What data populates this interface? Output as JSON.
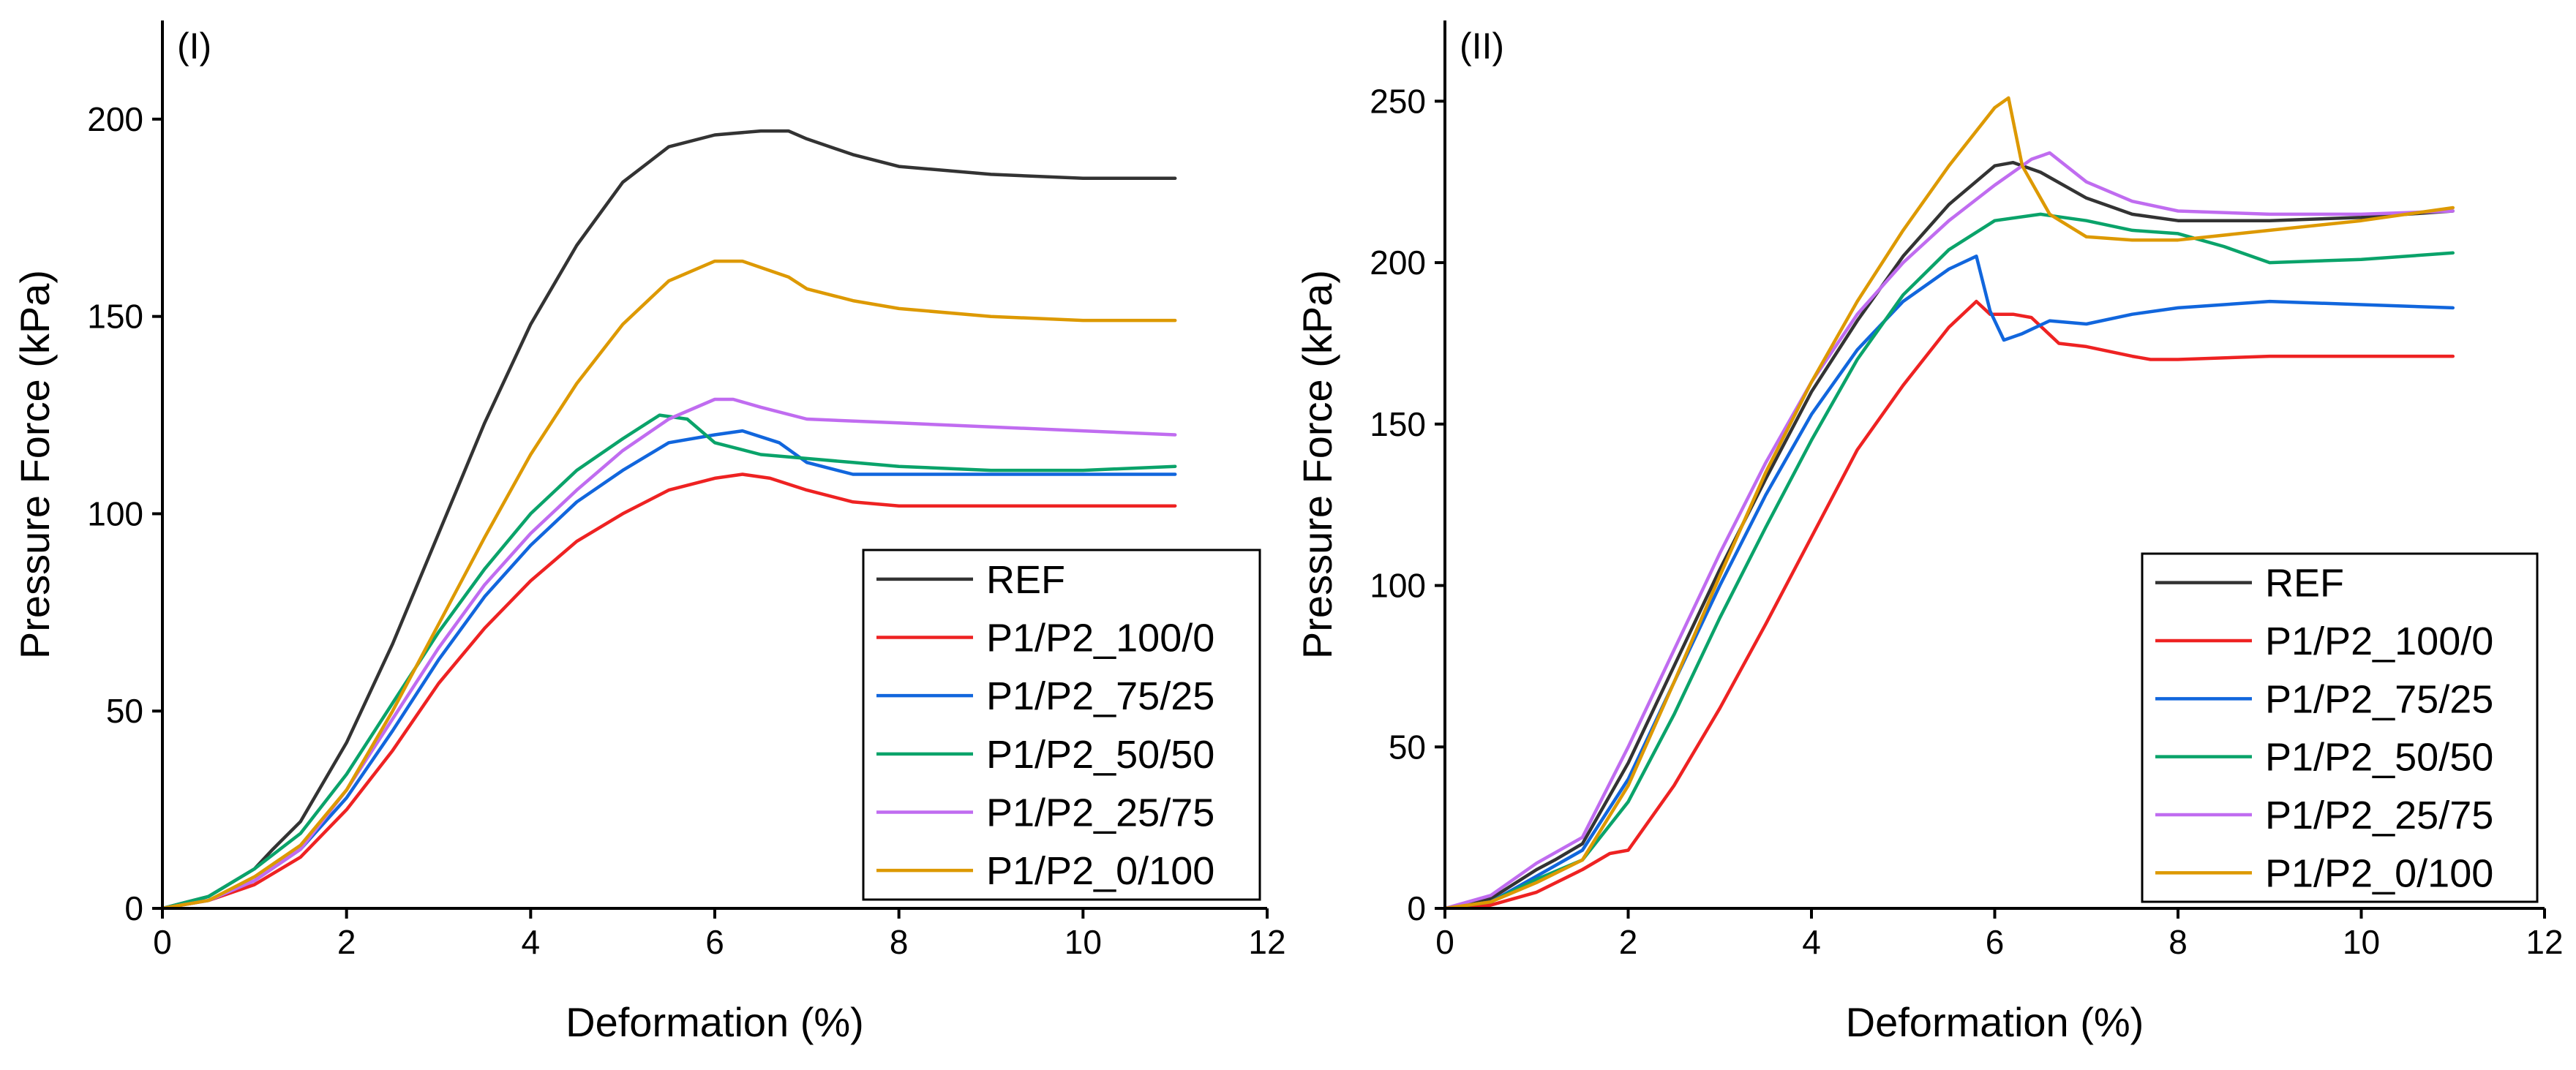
{
  "chart_data": [
    {
      "type": "line",
      "panel_label": "(I)",
      "xlabel": "Deformation (%)",
      "ylabel": "Pressure Force (kPa)",
      "xlim": [
        0,
        12
      ],
      "ylim": [
        0,
        225
      ],
      "xticks": [
        0,
        2,
        4,
        6,
        8,
        10,
        12
      ],
      "yticks": [
        0,
        50,
        100,
        150,
        200
      ],
      "grid": false,
      "legend_position": "bottom-right",
      "series": [
        {
          "name": "REF",
          "color": "#333333",
          "x": [
            0,
            0.5,
            1.0,
            1.2,
            1.5,
            2.0,
            2.5,
            3.0,
            3.5,
            4.0,
            4.5,
            5.0,
            5.5,
            6.0,
            6.5,
            6.8,
            7.0,
            7.5,
            8.0,
            9.0,
            10.0,
            11.0
          ],
          "y": [
            0,
            3,
            10,
            15,
            22,
            42,
            67,
            95,
            123,
            148,
            168,
            184,
            193,
            196,
            197,
            197,
            195,
            191,
            188,
            186,
            185,
            185
          ]
        },
        {
          "name": "P1/P2_100/0",
          "color": "#ee2222",
          "x": [
            0,
            0.5,
            1.0,
            1.5,
            2.0,
            2.5,
            3.0,
            3.5,
            4.0,
            4.5,
            5.0,
            5.5,
            6.0,
            6.3,
            6.6,
            7.0,
            7.5,
            8.0,
            9.0,
            10.0,
            11.0
          ],
          "y": [
            0,
            2,
            6,
            13,
            25,
            40,
            57,
            71,
            83,
            93,
            100,
            106,
            109,
            110,
            109,
            106,
            103,
            102,
            102,
            102,
            102
          ]
        },
        {
          "name": "P1/P2_75/25",
          "color": "#1166dd",
          "x": [
            0,
            0.5,
            1.0,
            1.5,
            2.0,
            2.5,
            3.0,
            3.5,
            4.0,
            4.5,
            5.0,
            5.5,
            6.0,
            6.3,
            6.7,
            7.0,
            7.5,
            8.0,
            9.0,
            10.0,
            11.0
          ],
          "y": [
            0,
            2,
            7,
            15,
            28,
            45,
            63,
            79,
            92,
            103,
            111,
            118,
            120,
            121,
            118,
            113,
            110,
            110,
            110,
            110,
            110
          ]
        },
        {
          "name": "P1/P2_50/50",
          "color": "#0aa36a",
          "x": [
            0,
            0.5,
            1.0,
            1.5,
            2.0,
            2.5,
            3.0,
            3.5,
            4.0,
            4.5,
            5.0,
            5.4,
            5.7,
            6.0,
            6.5,
            7.0,
            7.5,
            8.0,
            9.0,
            10.0,
            11.0
          ],
          "y": [
            0,
            3,
            10,
            19,
            34,
            52,
            70,
            86,
            100,
            111,
            119,
            125,
            124,
            118,
            115,
            114,
            113,
            112,
            111,
            111,
            112
          ]
        },
        {
          "name": "P1/P2_25/75",
          "color": "#c06cf0",
          "x": [
            0,
            0.5,
            1.0,
            1.5,
            2.0,
            2.5,
            3.0,
            3.5,
            4.0,
            4.5,
            5.0,
            5.5,
            6.0,
            6.2,
            6.5,
            7.0,
            8.0,
            9.0,
            10.0,
            11.0
          ],
          "y": [
            0,
            2,
            7,
            15,
            30,
            48,
            66,
            82,
            95,
            106,
            116,
            124,
            129,
            129,
            127,
            124,
            123,
            122,
            121,
            120
          ]
        },
        {
          "name": "P1/P2_0/100",
          "color": "#dd9900",
          "x": [
            0,
            0.5,
            1.0,
            1.5,
            2.0,
            2.5,
            3.0,
            3.5,
            4.0,
            4.5,
            5.0,
            5.5,
            6.0,
            6.3,
            6.8,
            7.0,
            7.5,
            8.0,
            9.0,
            10.0,
            11.0
          ],
          "y": [
            0,
            2,
            8,
            16,
            30,
            50,
            72,
            94,
            115,
            133,
            148,
            159,
            164,
            164,
            160,
            157,
            154,
            152,
            150,
            149,
            149
          ]
        }
      ]
    },
    {
      "type": "line",
      "panel_label": "(II)",
      "xlabel": "Deformation (%)",
      "ylabel": "Pressure Force (kPa)",
      "xlim": [
        0,
        12
      ],
      "ylim": [
        0,
        275
      ],
      "xticks": [
        0,
        2,
        4,
        6,
        8,
        10,
        12
      ],
      "yticks": [
        0,
        50,
        100,
        150,
        200,
        250
      ],
      "grid": false,
      "legend_position": "bottom-right",
      "series": [
        {
          "name": "REF",
          "color": "#333333",
          "x": [
            0,
            0.5,
            1.0,
            1.2,
            1.5,
            2.0,
            2.5,
            3.0,
            3.5,
            4.0,
            4.5,
            5.0,
            5.5,
            6.0,
            6.2,
            6.5,
            7.0,
            7.5,
            8.0,
            9.0,
            10.0,
            11.0
          ],
          "y": [
            0,
            3,
            12,
            15,
            20,
            45,
            75,
            105,
            133,
            160,
            182,
            202,
            218,
            230,
            231,
            228,
            220,
            215,
            213,
            213,
            214,
            216
          ]
        },
        {
          "name": "P1/P2_100/0",
          "color": "#ee2222",
          "x": [
            0,
            0.5,
            1.0,
            1.5,
            1.8,
            2.0,
            2.5,
            3.0,
            3.5,
            4.0,
            4.5,
            5.0,
            5.5,
            5.8,
            5.95,
            6.2,
            6.4,
            6.7,
            7.0,
            7.5,
            7.7,
            8.0,
            9.0,
            10.0,
            11.0
          ],
          "y": [
            0,
            1,
            5,
            12,
            17,
            18,
            38,
            62,
            88,
            115,
            142,
            162,
            180,
            188,
            184,
            184,
            183,
            175,
            174,
            171,
            170,
            170,
            171,
            171,
            171
          ]
        },
        {
          "name": "P1/P2_75/25",
          "color": "#1166dd",
          "x": [
            0,
            0.5,
            1.0,
            1.5,
            2.0,
            2.5,
            3.0,
            3.5,
            4.0,
            4.5,
            5.0,
            5.5,
            5.8,
            5.95,
            6.1,
            6.3,
            6.6,
            7.0,
            7.5,
            8.0,
            9.0,
            10.0,
            11.0
          ],
          "y": [
            0,
            2,
            10,
            18,
            40,
            70,
            100,
            128,
            153,
            173,
            188,
            198,
            202,
            185,
            176,
            178,
            182,
            181,
            184,
            186,
            188,
            187,
            186
          ]
        },
        {
          "name": "P1/P2_50/50",
          "color": "#0aa36a",
          "x": [
            0,
            0.5,
            1.0,
            1.5,
            2.0,
            2.5,
            3.0,
            3.5,
            4.0,
            4.5,
            5.0,
            5.5,
            6.0,
            6.5,
            7.0,
            7.5,
            8.0,
            8.5,
            9.0,
            10.0,
            11.0
          ],
          "y": [
            0,
            2,
            9,
            15,
            33,
            60,
            90,
            118,
            145,
            170,
            190,
            204,
            213,
            215,
            213,
            210,
            209,
            205,
            200,
            201,
            203
          ]
        },
        {
          "name": "P1/P2_25/75",
          "color": "#c06cf0",
          "x": [
            0,
            0.5,
            1.0,
            1.5,
            2.0,
            2.5,
            3.0,
            3.5,
            4.0,
            4.5,
            5.0,
            5.5,
            6.0,
            6.4,
            6.6,
            7.0,
            7.5,
            8.0,
            9.0,
            10.0,
            11.0
          ],
          "y": [
            0,
            4,
            14,
            22,
            50,
            80,
            110,
            138,
            163,
            184,
            200,
            213,
            224,
            232,
            234,
            225,
            219,
            216,
            215,
            215,
            216
          ]
        },
        {
          "name": "P1/P2_0/100",
          "color": "#dd9900",
          "x": [
            0,
            0.5,
            1.0,
            1.5,
            2.0,
            2.5,
            3.0,
            3.5,
            4.0,
            4.5,
            5.0,
            5.5,
            6.0,
            6.15,
            6.3,
            6.6,
            7.0,
            7.5,
            8.0,
            9.0,
            10.0,
            11.0
          ],
          "y": [
            0,
            2,
            8,
            15,
            38,
            70,
            103,
            135,
            163,
            188,
            210,
            230,
            248,
            251,
            230,
            215,
            208,
            207,
            207,
            210,
            213,
            217
          ]
        }
      ]
    }
  ]
}
